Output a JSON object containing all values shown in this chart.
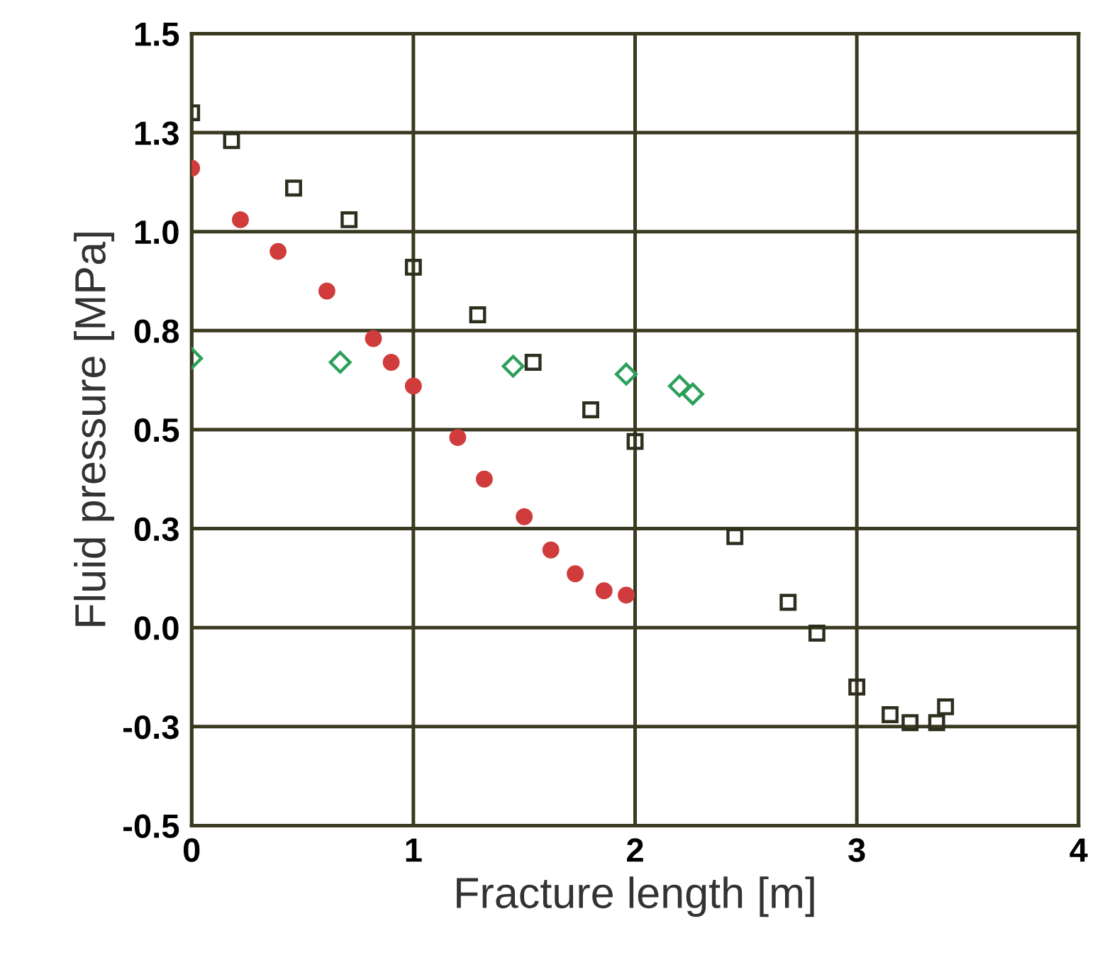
{
  "chart_data": {
    "type": "scatter",
    "xlabel": "Fracture length [m]",
    "ylabel": "Fluid pressure [MPa]",
    "xlim": [
      0,
      4
    ],
    "xticks": [
      0,
      1,
      2,
      3,
      4
    ],
    "ylim": [
      -0.5,
      1.5
    ],
    "yticks": [
      1.5,
      {
        "value": 1.25,
        "label": "1.3"
      },
      {
        "value": 1.0,
        "label": "1.0"
      },
      {
        "value": 0.75,
        "label": "0.8"
      },
      0.5,
      {
        "value": 0.25,
        "label": "0.3"
      },
      {
        "value": 0,
        "label": "0.0"
      },
      {
        "value": -0.25,
        "label": "-0.3"
      },
      -0.5
    ],
    "grid": true,
    "series": [
      {
        "color": "#d03c3c",
        "marker": "circle",
        "x": [
          0,
          0.22,
          0.39,
          0.61,
          0.82,
          0.9,
          1.0,
          1.2,
          1.32,
          1.5,
          1.62,
          1.73,
          1.86,
          1.96
        ],
        "values": [
          1.16,
          1.03,
          0.95,
          0.85,
          0.73,
          0.67,
          0.61,
          0.48,
          0.375,
          0.28,
          0.196,
          0.136,
          0.093,
          0.082
        ]
      },
      {
        "color": "#2ca05a",
        "marker": "diamond",
        "x": [
          0,
          0.67,
          1.45,
          1.96,
          2.2,
          2.26
        ],
        "values": [
          0.68,
          0.67,
          0.66,
          0.64,
          0.61,
          0.59
        ]
      },
      {
        "color": "#2e2e1e",
        "marker": "square",
        "x": [
          0,
          0.18,
          0.46,
          0.71,
          1.0,
          1.29,
          1.54,
          1.8,
          2.0,
          2.45,
          2.69,
          2.82,
          3.0,
          3.15,
          3.24,
          3.36,
          3.4
        ],
        "values": [
          1.3,
          1.23,
          1.11,
          1.03,
          0.91,
          0.79,
          0.67,
          0.55,
          0.47,
          0.23,
          0.064,
          -0.014,
          -0.15,
          -0.22,
          -0.24,
          -0.24,
          -0.2
        ]
      }
    ]
  }
}
